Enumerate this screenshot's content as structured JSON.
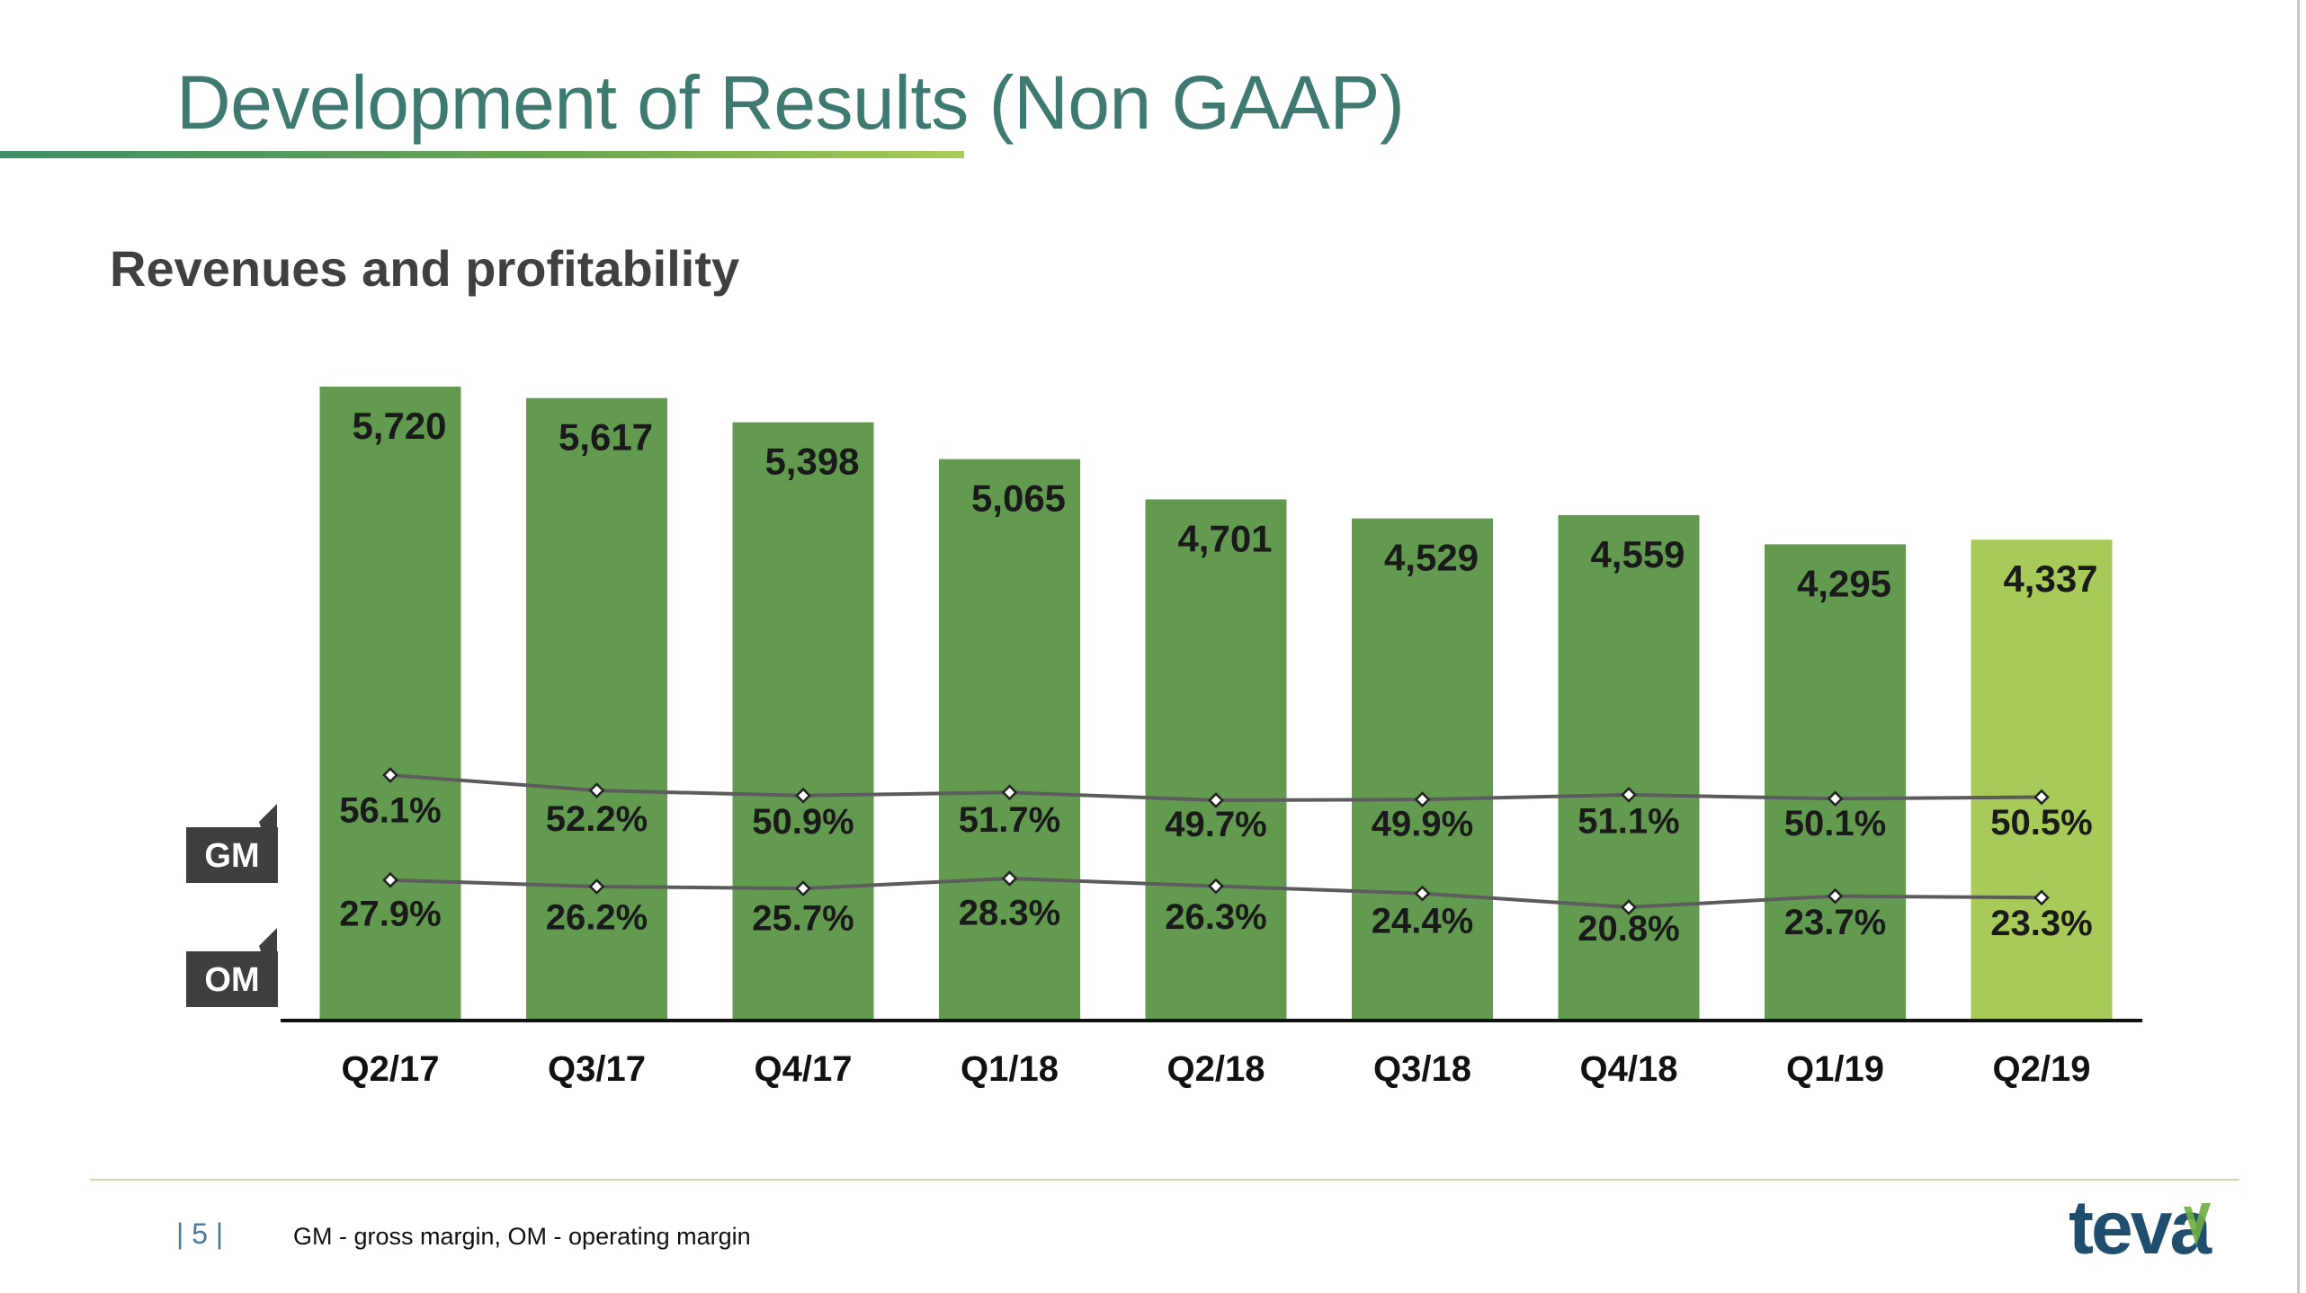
{
  "page": {
    "title": "Development of Results (Non GAAP)",
    "subtitle": "Revenues and profitability",
    "page_number": "| 5 |",
    "footnote": "GM - gross margin, OM - operating margin",
    "logo_text": "teva"
  },
  "colors": {
    "title": "#3e7a70",
    "bar": "#629b50",
    "bar_highlight": "#a8ca58",
    "line": "#5c5c5c",
    "tag_bg": "#3f3f3f",
    "logo": "#1f4e6e",
    "logo_leaf": "#6fae3f"
  },
  "chart_data": {
    "type": "bar",
    "categories": [
      "Q2/17",
      "Q3/17",
      "Q4/17",
      "Q1/18",
      "Q2/18",
      "Q3/18",
      "Q4/18",
      "Q1/19",
      "Q2/19"
    ],
    "values": [
      5720,
      5617,
      5398,
      5065,
      4701,
      4529,
      4559,
      4295,
      4337
    ],
    "value_labels": [
      "5,720",
      "5,617",
      "5,398",
      "5,065",
      "4,701",
      "4,529",
      "4,559",
      "4,295",
      "4,337"
    ],
    "highlight_index": 8,
    "ylim": [
      0,
      5720
    ],
    "lines": [
      {
        "name": "GM",
        "values": [
          56.1,
          52.2,
          50.9,
          51.7,
          49.7,
          49.9,
          51.1,
          50.1,
          50.5
        ],
        "labels": [
          "56.1%",
          "52.2%",
          "50.9%",
          "51.7%",
          "49.7%",
          "49.9%",
          "51.1%",
          "50.1%",
          "50.5%"
        ]
      },
      {
        "name": "OM",
        "values": [
          27.9,
          26.2,
          25.7,
          28.3,
          26.3,
          24.4,
          20.8,
          23.7,
          23.3
        ],
        "labels": [
          "27.9%",
          "26.2%",
          "25.7%",
          "28.3%",
          "26.3%",
          "24.4%",
          "20.8%",
          "23.7%",
          "23.3%"
        ]
      }
    ],
    "grid": false,
    "legend": "left"
  }
}
